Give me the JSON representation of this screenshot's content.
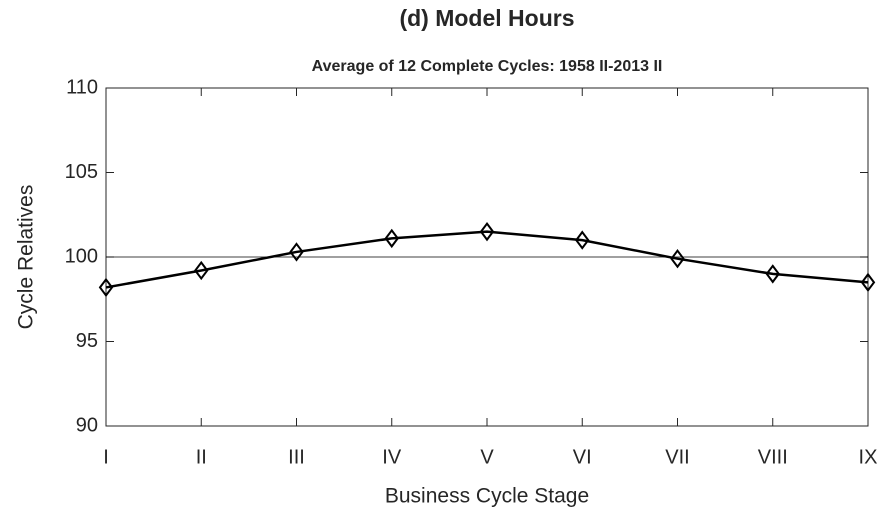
{
  "chart_data": {
    "type": "line",
    "title": "(d) Model Hours",
    "subtitle": "Average of 12 Complete Cycles: 1958 II-2013 II",
    "x_label": "Business Cycle Stage",
    "y_label": "Cycle Relatives",
    "categories": [
      "I",
      "II",
      "III",
      "IV",
      "V",
      "VI",
      "VII",
      "VIII",
      "IX"
    ],
    "series": [
      {
        "name": "Model Hours",
        "color": "#000000",
        "values": [
          98.2,
          99.2,
          100.3,
          101.1,
          101.5,
          101.0,
          99.9,
          99.0,
          98.5
        ]
      }
    ],
    "ylim": [
      90,
      110
    ],
    "yticks": [
      90,
      95,
      100,
      105,
      110
    ],
    "reference_line": 100,
    "marker": "diamond",
    "grid": false
  }
}
